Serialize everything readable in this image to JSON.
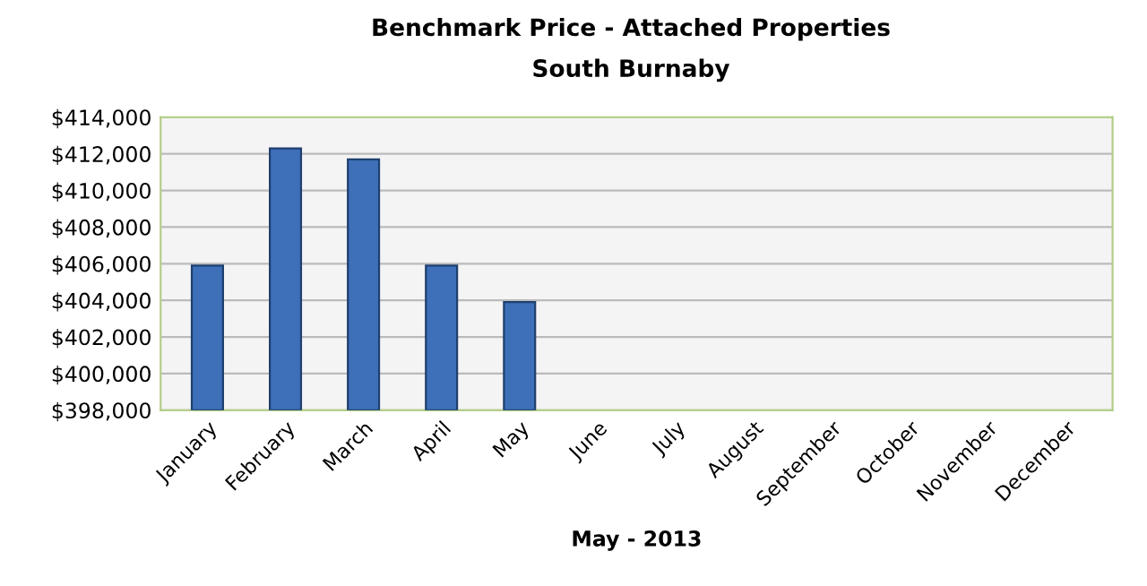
{
  "chart_data": {
    "type": "bar",
    "title": "Benchmark Price - Attached Properties",
    "subtitle": "South Burnaby",
    "xlabel": "May - 2013",
    "categories": [
      "January",
      "February",
      "March",
      "April",
      "May",
      "June",
      "July",
      "August",
      "September",
      "October",
      "November",
      "December"
    ],
    "values": [
      405900,
      412300,
      411700,
      405900,
      403900,
      null,
      null,
      null,
      null,
      null,
      null,
      null
    ],
    "color": "#3d70b8",
    "ylim": [
      398000,
      414000
    ],
    "yticks": [
      {
        "value": 398000,
        "label": "$398,000"
      },
      {
        "value": 400000,
        "label": "$400,000"
      },
      {
        "value": 402000,
        "label": "$402,000"
      },
      {
        "value": 404000,
        "label": "$404,000"
      },
      {
        "value": 406000,
        "label": "$406,000"
      },
      {
        "value": 408000,
        "label": "$408,000"
      },
      {
        "value": 410000,
        "label": "$410,000"
      },
      {
        "value": 412000,
        "label": "$412,000"
      },
      {
        "value": 414000,
        "label": "$414,000"
      }
    ],
    "grid": "y"
  }
}
